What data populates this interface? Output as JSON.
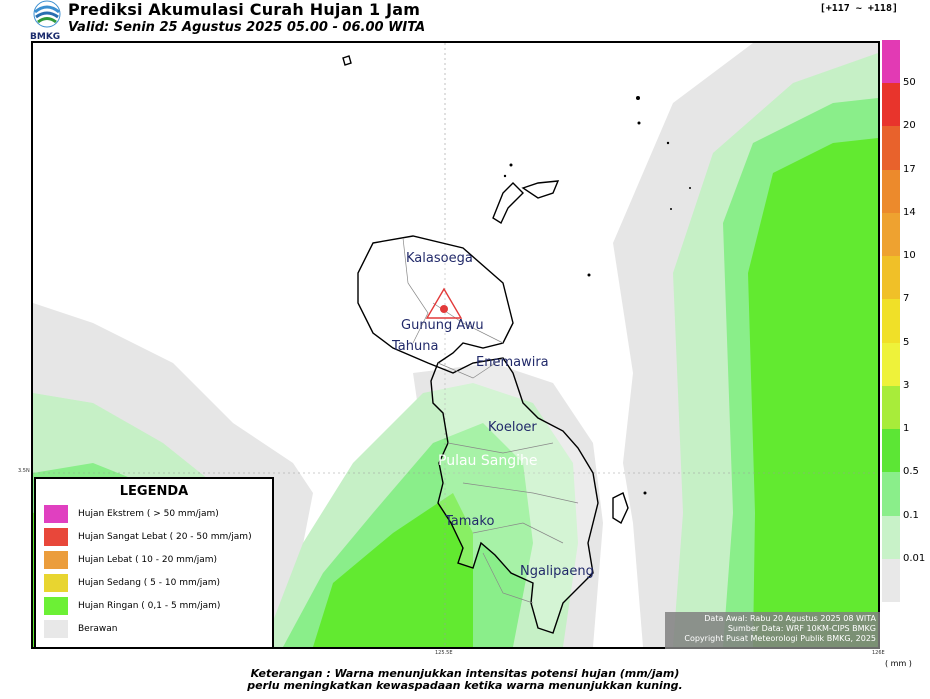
{
  "header": {
    "logo_text": "BMKG",
    "title": "Prediksi Akumulasi Curah Hujan 1 Jam",
    "valid": "Valid: Senin 25 Agustus 2025 05.00 - 06.00 WITA",
    "coord_tag": "[+117 ~ +118]"
  },
  "map": {
    "places": [
      {
        "name": "Kalasoega"
      },
      {
        "name": "Gunung Awu"
      },
      {
        "name": "Tahuna"
      },
      {
        "name": "Enemawira"
      },
      {
        "name": "Koeloer"
      },
      {
        "name": "Pulau Sangihe"
      },
      {
        "name": "Tamako"
      },
      {
        "name": "Ngalipaeng"
      }
    ],
    "lat_tick": "3.5N",
    "lon_ticks": [
      "125.5E",
      "126E"
    ],
    "volcano_icon": "volcano-triangle-icon"
  },
  "legend": {
    "title": "LEGENDA",
    "items": [
      {
        "label": "Hujan Ekstrem ( > 50 mm/jam)",
        "color": "#e040c0"
      },
      {
        "label": "Hujan Sangat Lebat ( 20 - 50 mm/jam)",
        "color": "#e8473a"
      },
      {
        "label": "Hujan Lebat ( 10 - 20 mm/jam)",
        "color": "#eb9d3c"
      },
      {
        "label": "Hujan Sedang ( 5 - 10 mm/jam)",
        "color": "#e8d530"
      },
      {
        "label": "Hujan Ringan ( 0,1 - 5 mm/jam)",
        "color": "#6cf035"
      },
      {
        "label": "Berawan",
        "color": "#e8e8e8"
      }
    ]
  },
  "info": {
    "line1": "Data Awal: Rabu 20 Agustus 2025 08 WITA",
    "line2": "Sumber Data: WRF 10KM-CIPS BMKG",
    "line3": "Copyright Pusat Meteorologi Publik BMKG, 2025"
  },
  "colorbar": {
    "unit": "( mm )",
    "labels": [
      "50",
      "20",
      "17",
      "14",
      "10",
      "7",
      "5",
      "3",
      "1",
      "0.5",
      "0.1",
      "0.01"
    ],
    "colors": [
      "#e23ab4",
      "#e8342c",
      "#e8622c",
      "#ec8a2c",
      "#eea230",
      "#f0c028",
      "#f0e028",
      "#eef23a",
      "#a8ec3a",
      "#5ce635",
      "#8aee8a",
      "#c8f2c8",
      "#e8e8e8"
    ]
  },
  "footer": {
    "note1": "Keterangan : Warna menunjukkan intensitas potensi hujan (mm/jam)",
    "note2": "perlu meningkatkan kewaspadaan ketika warna menunjukkan kuning."
  }
}
